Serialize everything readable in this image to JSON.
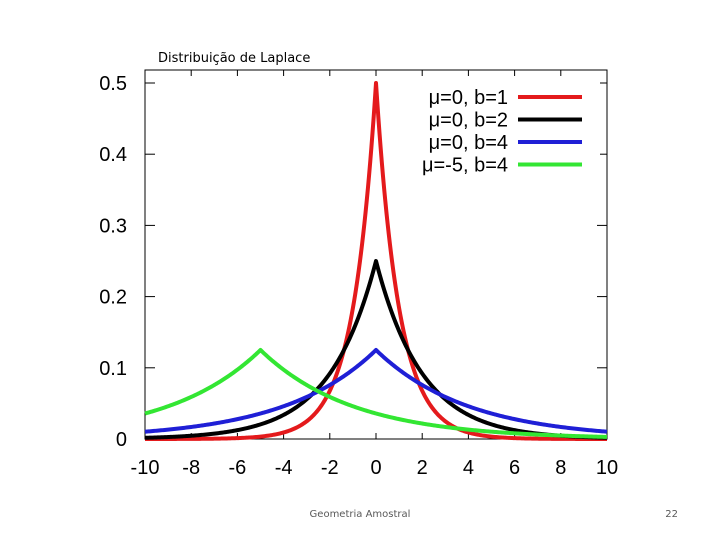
{
  "slide": {
    "footer": "Geometria Amostral",
    "page_number": "22"
  },
  "chart_data": {
    "type": "line",
    "title": "Distribuição de Laplace",
    "xlabel": "",
    "ylabel": "",
    "xlim": [
      -10,
      10
    ],
    "ylim": [
      0,
      0.5
    ],
    "x_ticks": [
      "-10",
      "-8",
      "-6",
      "-4",
      "-2",
      "0",
      "2",
      "4",
      "6",
      "8",
      "10"
    ],
    "y_ticks": [
      "0",
      "0.1",
      "0.2",
      "0.3",
      "0.4",
      "0.5"
    ],
    "grid": false,
    "legend_position": "top-right",
    "series": [
      {
        "name": "μ=0, b=1",
        "mu": 0,
        "b": 1,
        "color": "#e41a1c"
      },
      {
        "name": "μ=0, b=2",
        "mu": 0,
        "b": 2,
        "color": "#000000"
      },
      {
        "name": "μ=0, b=4",
        "mu": 0,
        "b": 4,
        "color": "#1f1fd6"
      },
      {
        "name": "μ=-5, b=4",
        "mu": -5,
        "b": 4,
        "color": "#33e633"
      }
    ]
  }
}
